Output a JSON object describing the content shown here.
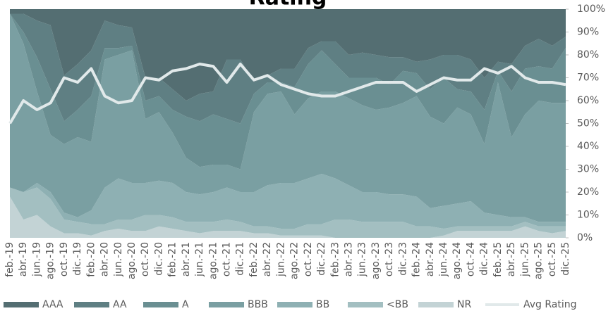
{
  "chart_data": {
    "type": "stacked_area",
    "title": "Rating",
    "categories": [
      "feb.-19",
      "abr.-19",
      "jun.-19",
      "ago.-19",
      "oct.-19",
      "dic.-19",
      "feb.-20",
      "abr.-20",
      "jun.-20",
      "ago.-20",
      "oct.-20",
      "dic.-20",
      "feb.-21",
      "abr.-21",
      "jun.-21",
      "ago.-21",
      "oct.-21",
      "dic.-21",
      "feb.-22",
      "abr.-22",
      "jun.-22",
      "ago.-22",
      "oct.-22",
      "dic.-22",
      "feb.-23",
      "abr.-23",
      "jun.-23",
      "ago.-23",
      "oct.-23",
      "dic.-23",
      "feb.-24",
      "abr.-24",
      "jun.-24",
      "ago.-24",
      "oct.-24",
      "dic.-24",
      "feb.-25",
      "abr.-25",
      "jun.-25",
      "ago.-25",
      "oct.-25",
      "dic.-25"
    ],
    "series": [
      {
        "name": "AAA",
        "color": "#546e72",
        "values": [
          2,
          2,
          5,
          7,
          29,
          24,
          18,
          5,
          7,
          8,
          30,
          30,
          35,
          40,
          37,
          36,
          22,
          22,
          32,
          29,
          26,
          26,
          17,
          14,
          14,
          20,
          19,
          20,
          21,
          21,
          23,
          22,
          20,
          20,
          22,
          30,
          23,
          24,
          16,
          13,
          16,
          12
        ]
      },
      {
        "name": "AA",
        "color": "#5f7f83",
        "values": [
          0,
          8,
          16,
          28,
          20,
          20,
          20,
          12,
          10,
          8,
          10,
          8,
          9,
          7,
          12,
          10,
          26,
          28,
          5,
          3,
          6,
          8,
          7,
          4,
          10,
          10,
          11,
          10,
          12,
          6,
          5,
          13,
          10,
          15,
          14,
          14,
          4,
          12,
          10,
          12,
          10,
          5
        ]
      },
      {
        "name": "A",
        "color": "#6a8f92",
        "values": [
          0,
          5,
          15,
          20,
          10,
          12,
          20,
          5,
          3,
          2,
          8,
          7,
          10,
          18,
          20,
          22,
          20,
          20,
          8,
          5,
          4,
          12,
          15,
          18,
          12,
          9,
          12,
          14,
          10,
          14,
          10,
          12,
          20,
          8,
          10,
          15,
          5,
          20,
          20,
          15,
          15,
          24
        ]
      },
      {
        "name": "BBB",
        "color": "#7a9fa2",
        "values": [
          76,
          65,
          40,
          25,
          30,
          35,
          30,
          56,
          54,
          58,
          28,
          30,
          22,
          15,
          12,
          12,
          10,
          10,
          35,
          40,
          40,
          30,
          35,
          36,
          38,
          38,
          38,
          36,
          38,
          40,
          44,
          40,
          36,
          42,
          38,
          30,
          58,
          35,
          45,
          53,
          52,
          52
        ]
      },
      {
        "name": "BB",
        "color": "#8eb0b3",
        "values": [
          0,
          0,
          2,
          3,
          3,
          2,
          6,
          16,
          18,
          16,
          14,
          15,
          15,
          13,
          12,
          13,
          14,
          13,
          15,
          18,
          20,
          20,
          20,
          22,
          18,
          15,
          13,
          13,
          12,
          12,
          13,
          8,
          10,
          10,
          11,
          6,
          5,
          4,
          2,
          2,
          2,
          2
        ]
      },
      {
        "name": "<BB",
        "color": "#a3bfc1",
        "values": [
          4,
          12,
          12,
          12,
          6,
          5,
          5,
          3,
          4,
          5,
          7,
          5,
          5,
          4,
          5,
          4,
          5,
          4,
          3,
          3,
          3,
          3,
          5,
          5,
          8,
          8,
          7,
          7,
          7,
          7,
          5,
          5,
          3,
          2,
          2,
          2,
          2,
          2,
          2,
          2,
          3,
          2
        ]
      },
      {
        "name": "NR",
        "color": "#c3d3d5",
        "values": [
          18,
          8,
          10,
          5,
          2,
          2,
          1,
          3,
          4,
          3,
          3,
          5,
          4,
          3,
          2,
          3,
          3,
          3,
          2,
          2,
          1,
          1,
          1,
          1,
          0,
          0,
          0,
          0,
          0,
          0,
          0,
          0,
          1,
          3,
          3,
          3,
          3,
          3,
          5,
          3,
          2,
          3
        ]
      }
    ],
    "line": {
      "name": "Avg Rating",
      "color": "#e1e9ea",
      "values": [
        50,
        60,
        56,
        59,
        70,
        68,
        74,
        62,
        59,
        60,
        70,
        69,
        73,
        74,
        76,
        75,
        68,
        76,
        69,
        71,
        67,
        65,
        63,
        62,
        62,
        64,
        66,
        68,
        68,
        68,
        64,
        67,
        70,
        69,
        69,
        74,
        72,
        75,
        70,
        68,
        68,
        67
      ]
    },
    "ylim": [
      0,
      100
    ],
    "yticks": [
      {
        "value": 0,
        "label": "0%"
      },
      {
        "value": 10,
        "label": "10%"
      },
      {
        "value": 20,
        "label": "20%"
      },
      {
        "value": 30,
        "label": "30%"
      },
      {
        "value": 40,
        "label": "40%"
      },
      {
        "value": 50,
        "label": "50%"
      },
      {
        "value": 60,
        "label": "60%"
      },
      {
        "value": 70,
        "label": "70%"
      },
      {
        "value": 80,
        "label": "80%"
      },
      {
        "value": 90,
        "label": "90%"
      },
      {
        "value": 100,
        "label": "100%"
      }
    ],
    "legend": "bottom"
  }
}
